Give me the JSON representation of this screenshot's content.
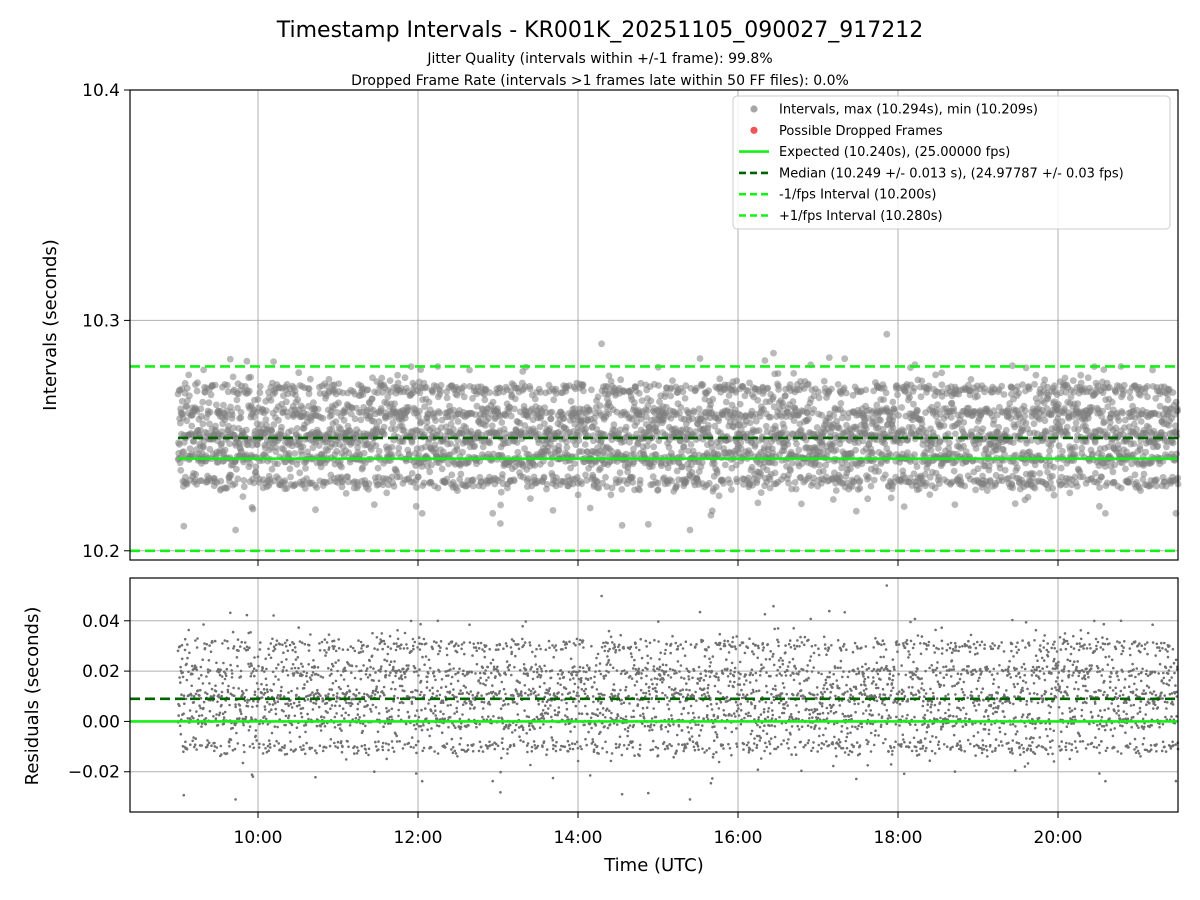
{
  "chart_data": {
    "type": "scatter",
    "title": "Timestamp Intervals - KR001K_20251105_090027_917212",
    "subtitle_lines": [
      "Jitter Quality (intervals within +/-1 frame): 99.8%",
      "Dropped Frame Rate (intervals >1 frames late within 50 FF files): 0.0%"
    ],
    "xlabel": "Time (UTC)",
    "x_range_hours": [
      8.4,
      21.5
    ],
    "x_data_range_hours": [
      9.0,
      21.5
    ],
    "x_ticks": [
      {
        "value": 10,
        "label": "10:00"
      },
      {
        "value": 12,
        "label": "12:00"
      },
      {
        "value": 14,
        "label": "14:00"
      },
      {
        "value": 16,
        "label": "16:00"
      },
      {
        "value": 18,
        "label": "18:00"
      },
      {
        "value": 20,
        "label": "20:00"
      }
    ],
    "grid": true,
    "top_panel": {
      "ylabel": "Intervals (seconds)",
      "ylim": [
        10.196,
        10.4
      ],
      "y_ticks": [
        {
          "value": 10.2,
          "label": "10.2"
        },
        {
          "value": 10.3,
          "label": "10.3"
        },
        {
          "value": 10.4,
          "label": "10.4"
        }
      ],
      "stats": {
        "max": 10.294,
        "min": 10.209,
        "expected": 10.24,
        "median": 10.249,
        "minus_interval": 10.2,
        "plus_interval": 10.28,
        "spread": 0.013
      },
      "point_color": "#808080",
      "dropped_color": "#ee5555",
      "dropped_points": []
    },
    "bottom_panel": {
      "ylabel": "Residuals (seconds)",
      "ylim": [
        -0.036,
        0.057
      ],
      "y_ticks": [
        {
          "value": -0.02,
          "label": "−0.02"
        },
        {
          "value": 0.0,
          "label": "0.00"
        },
        {
          "value": 0.02,
          "label": "0.02"
        },
        {
          "value": 0.04,
          "label": "0.04"
        }
      ],
      "expected_residual": 0.0,
      "median_residual": 0.009,
      "point_color": "#707070"
    },
    "legend": {
      "placement": "top-right",
      "entries": [
        {
          "label": "Intervals, max (10.294s), min (10.209s)",
          "kind": "dot",
          "color": "#a6a6a6"
        },
        {
          "label": "Possible Dropped Frames",
          "kind": "dot",
          "color": "#ee5555"
        },
        {
          "label": "Expected (10.240s), (25.00000 fps)",
          "kind": "line",
          "color": "#16f016",
          "dash": false
        },
        {
          "label": "Median (10.249 +/- 0.013 s), (24.97787 +/- 0.03 fps)",
          "kind": "line",
          "color": "#006400",
          "dash": true
        },
        {
          "label": "-1/fps Interval (10.200s)",
          "kind": "line",
          "color": "#16f016",
          "dash": true
        },
        {
          "label": "+1/fps Interval (10.280s)",
          "kind": "line",
          "color": "#16f016",
          "dash": true
        }
      ]
    },
    "colors": {
      "expected": "#16f016",
      "median": "#006400",
      "fps_interval": "#16f016",
      "grid": "#b0b0b0"
    },
    "approx_point_count": 4300
  }
}
